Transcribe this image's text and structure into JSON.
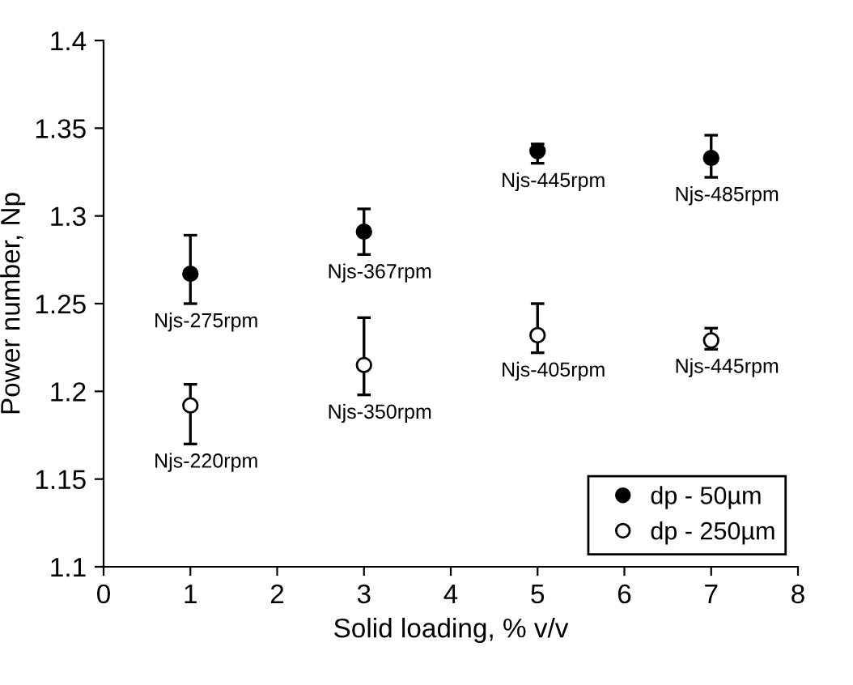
{
  "chart_data": {
    "type": "scatter",
    "xlabel": "Solid loading, % v/v",
    "ylabel": "Power number, Np",
    "x": [
      1,
      3,
      5,
      7
    ],
    "series": [
      {
        "name": "dp - 50µm",
        "color": "#000000",
        "values": [
          1.267,
          1.291,
          1.337,
          1.333
        ],
        "errors": [
          [
            1.25,
            1.289
          ],
          [
            1.278,
            1.304
          ],
          [
            1.33,
            1.341
          ],
          [
            1.322,
            1.346
          ]
        ]
      },
      {
        "name": "dp - 250µm",
        "color": "#000000",
        "values": [
          1.192,
          1.215,
          1.232,
          1.229
        ],
        "errors": [
          [
            1.17,
            1.204
          ],
          [
            1.198,
            1.242
          ],
          [
            1.222,
            1.25
          ],
          [
            1.224,
            1.236
          ]
        ]
      }
    ],
    "annotations": [
      {
        "text": "Njs-275rpm",
        "x": 1,
        "y": 1.267
      },
      {
        "text": "Njs-367rpm",
        "x": 3,
        "y": 1.291
      },
      {
        "text": "Njs-445rpm",
        "x": 5,
        "y": 1.337
      },
      {
        "text": "Njs-485rpm",
        "x": 7,
        "y": 1.333
      },
      {
        "text": "Njs-220rpm",
        "x": 1,
        "y": 1.192
      },
      {
        "text": "Njs-350rpm",
        "x": 3,
        "y": 1.215
      },
      {
        "text": "Njs-405rpm",
        "x": 5,
        "y": 1.232
      },
      {
        "text": "Njs-445rpm",
        "x": 7,
        "y": 1.229
      }
    ],
    "xlim": [
      0,
      8
    ],
    "xticks": [
      0,
      1,
      2,
      3,
      4,
      5,
      6,
      7,
      8
    ],
    "ylim": [
      1.1,
      1.4
    ],
    "yticks": [
      1.1,
      1.15,
      1.2,
      1.25,
      1.3,
      1.35,
      1.4
    ],
    "marker": "circle",
    "grid": false,
    "legend": "bottom right"
  }
}
